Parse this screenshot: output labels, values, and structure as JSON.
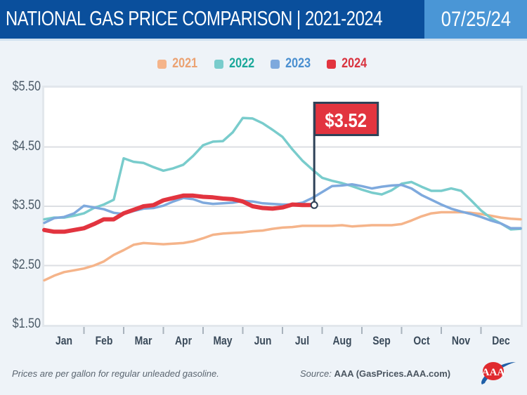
{
  "header": {
    "title": "NATIONAL GAS PRICE COMPARISON | 2021-2024",
    "date": "07/25/24"
  },
  "footer": {
    "note": "Prices are per gallon for regular unleaded gasoline.",
    "source_prefix": "Source:",
    "source_name": "AAA (GasPrices.AAA.com)",
    "logo": "aaa-logo"
  },
  "chart_data": {
    "type": "line",
    "title": "National Gas Price Comparison 2021-2024",
    "xlabel": "",
    "ylabel": "",
    "x_unit": "month (0 = Jan 1, 12 = Dec 31)",
    "ylim": [
      1.5,
      5.5
    ],
    "xlim": [
      0,
      12
    ],
    "yticks": [
      "$1.50",
      "$2.50",
      "$3.50",
      "$4.50",
      "$5.50"
    ],
    "ytick_values": [
      1.5,
      2.5,
      3.5,
      4.5,
      5.5
    ],
    "xticks": [
      "Jan",
      "Feb",
      "Mar",
      "Apr",
      "May",
      "Jun",
      "Jul",
      "Aug",
      "Sep",
      "Oct",
      "Nov",
      "Dec"
    ],
    "grid": true,
    "legend": "top-center",
    "annotation": {
      "label": "$3.52",
      "series": "2024",
      "x": 6.8,
      "y": 3.52,
      "color": "#e2343f"
    },
    "series": [
      {
        "name": "2021",
        "color": "#f5b48a",
        "x": [
          0,
          0.25,
          0.5,
          0.75,
          1,
          1.25,
          1.5,
          1.75,
          2,
          2.25,
          2.5,
          2.75,
          3,
          3.25,
          3.5,
          3.75,
          4,
          4.25,
          4.5,
          4.75,
          5,
          5.25,
          5.5,
          5.75,
          6,
          6.25,
          6.5,
          6.75,
          7,
          7.25,
          7.5,
          7.75,
          8,
          8.25,
          8.5,
          8.75,
          9,
          9.25,
          9.5,
          9.75,
          10,
          10.25,
          10.5,
          10.75,
          11,
          11.25,
          11.5,
          11.75,
          12
        ],
        "y": [
          2.25,
          2.33,
          2.39,
          2.42,
          2.45,
          2.5,
          2.57,
          2.68,
          2.76,
          2.85,
          2.88,
          2.87,
          2.86,
          2.87,
          2.88,
          2.91,
          2.96,
          3.02,
          3.04,
          3.05,
          3.06,
          3.08,
          3.09,
          3.12,
          3.14,
          3.15,
          3.17,
          3.17,
          3.17,
          3.17,
          3.18,
          3.16,
          3.17,
          3.18,
          3.18,
          3.18,
          3.2,
          3.26,
          3.33,
          3.38,
          3.4,
          3.4,
          3.4,
          3.39,
          3.37,
          3.34,
          3.31,
          3.29,
          3.28
        ]
      },
      {
        "name": "2022",
        "color": "#79cccc",
        "x": [
          0,
          0.25,
          0.5,
          0.75,
          1,
          1.25,
          1.5,
          1.75,
          2,
          2.25,
          2.5,
          2.75,
          3,
          3.25,
          3.5,
          3.75,
          4,
          4.25,
          4.5,
          4.75,
          5,
          5.25,
          5.5,
          5.75,
          6,
          6.25,
          6.5,
          6.75,
          7,
          7.25,
          7.5,
          7.75,
          8,
          8.25,
          8.5,
          8.75,
          9,
          9.25,
          9.5,
          9.75,
          10,
          10.25,
          10.5,
          10.75,
          11,
          11.25,
          11.5,
          11.75,
          12
        ],
        "y": [
          3.28,
          3.31,
          3.31,
          3.34,
          3.38,
          3.47,
          3.53,
          3.61,
          4.31,
          4.25,
          4.23,
          4.16,
          4.1,
          4.14,
          4.2,
          4.35,
          4.53,
          4.59,
          4.6,
          4.75,
          4.99,
          4.98,
          4.9,
          4.79,
          4.67,
          4.46,
          4.27,
          4.12,
          3.98,
          3.93,
          3.89,
          3.84,
          3.78,
          3.73,
          3.7,
          3.77,
          3.88,
          3.91,
          3.83,
          3.76,
          3.76,
          3.8,
          3.76,
          3.6,
          3.43,
          3.3,
          3.21,
          3.11,
          3.12
        ]
      },
      {
        "name": "2023",
        "color": "#7ea9dd",
        "x": [
          0,
          0.25,
          0.5,
          0.75,
          1,
          1.25,
          1.5,
          1.75,
          2,
          2.25,
          2.5,
          2.75,
          3,
          3.25,
          3.5,
          3.75,
          4,
          4.25,
          4.5,
          4.75,
          5,
          5.25,
          5.5,
          5.75,
          6,
          6.25,
          6.5,
          6.75,
          7,
          7.25,
          7.5,
          7.75,
          8,
          8.25,
          8.5,
          8.75,
          9,
          9.25,
          9.5,
          9.75,
          10,
          10.25,
          10.5,
          10.75,
          11,
          11.25,
          11.5,
          11.75,
          12
        ],
        "y": [
          3.22,
          3.3,
          3.32,
          3.38,
          3.51,
          3.48,
          3.45,
          3.39,
          3.37,
          3.42,
          3.46,
          3.47,
          3.51,
          3.58,
          3.64,
          3.62,
          3.56,
          3.54,
          3.55,
          3.56,
          3.59,
          3.58,
          3.55,
          3.54,
          3.53,
          3.53,
          3.56,
          3.64,
          3.74,
          3.84,
          3.85,
          3.87,
          3.84,
          3.8,
          3.83,
          3.85,
          3.86,
          3.8,
          3.69,
          3.61,
          3.53,
          3.46,
          3.41,
          3.37,
          3.32,
          3.26,
          3.21,
          3.13,
          3.13
        ]
      },
      {
        "name": "2024",
        "color": "#e2343f",
        "x": [
          0,
          0.25,
          0.5,
          0.75,
          1,
          1.25,
          1.5,
          1.75,
          2,
          2.25,
          2.5,
          2.75,
          3,
          3.25,
          3.5,
          3.75,
          4,
          4.25,
          4.5,
          4.75,
          5,
          5.25,
          5.5,
          5.75,
          6,
          6.25,
          6.5,
          6.8
        ],
        "y": [
          3.1,
          3.07,
          3.07,
          3.1,
          3.13,
          3.2,
          3.28,
          3.28,
          3.38,
          3.44,
          3.5,
          3.52,
          3.6,
          3.64,
          3.68,
          3.68,
          3.66,
          3.65,
          3.63,
          3.62,
          3.58,
          3.5,
          3.47,
          3.46,
          3.48,
          3.53,
          3.52,
          3.52
        ]
      }
    ]
  }
}
